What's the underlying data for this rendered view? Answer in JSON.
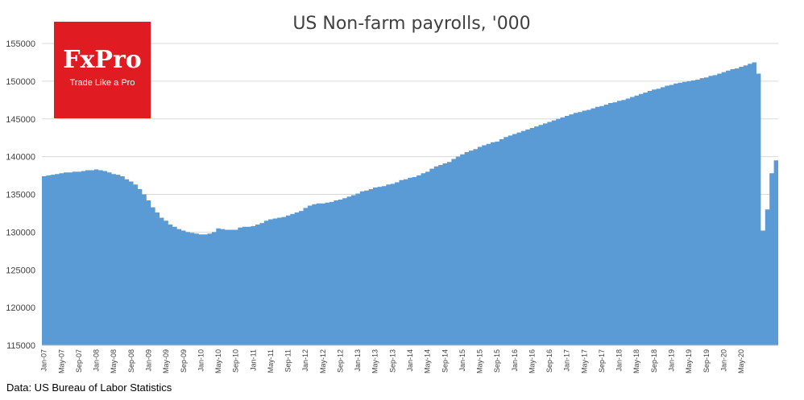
{
  "logo": {
    "name": "FxPro",
    "tagline": "Trade Like a Pro",
    "color": "#e01b22"
  },
  "source": "Data: US Bureau of Labor Statistics",
  "chart_data": {
    "type": "area",
    "title": "US Non-farm payrolls, '000",
    "xlabel": "",
    "ylabel": "",
    "ylim": [
      115000,
      155000
    ],
    "yticks": [
      "115000",
      "120000",
      "125000",
      "130000",
      "135000",
      "140000",
      "145000",
      "150000",
      "155000"
    ],
    "grid": true,
    "color": "#5b9bd5",
    "xticks": [
      "Jan-07",
      "May-07",
      "Sep-07",
      "Jan-08",
      "May-08",
      "Sep-08",
      "Jan-09",
      "May-09",
      "Sep-09",
      "Jan-10",
      "May-10",
      "Sep-10",
      "Jan-11",
      "May-11",
      "Sep-11",
      "Jan-12",
      "May-12",
      "Sep-12",
      "Jan-13",
      "May-13",
      "Sep-13",
      "Jan-14",
      "May-14",
      "Sep-14",
      "Jan-15",
      "May-15",
      "Sep-15",
      "Jan-16",
      "May-16",
      "Sep-16",
      "Jan-17",
      "May-17",
      "Sep-17",
      "Jan-18",
      "May-18",
      "Sep-18",
      "Jan-19",
      "May-19",
      "Sep-19",
      "Jan-20",
      "May-20"
    ],
    "start": "Jan-07",
    "values": [
      137400,
      137500,
      137600,
      137700,
      137800,
      137900,
      137900,
      138000,
      138000,
      138100,
      138200,
      138200,
      138300,
      138200,
      138100,
      137900,
      137700,
      137600,
      137400,
      137000,
      136700,
      136300,
      135700,
      135000,
      134200,
      133300,
      132600,
      131900,
      131500,
      131000,
      130700,
      130400,
      130200,
      130000,
      129900,
      129800,
      129700,
      129700,
      129800,
      130000,
      130500,
      130400,
      130300,
      130300,
      130300,
      130600,
      130700,
      130700,
      130800,
      131000,
      131200,
      131500,
      131700,
      131800,
      131900,
      132000,
      132200,
      132400,
      132600,
      132800,
      133200,
      133500,
      133700,
      133800,
      133800,
      133900,
      134000,
      134200,
      134300,
      134500,
      134700,
      134900,
      135100,
      135400,
      135500,
      135700,
      135900,
      136000,
      136100,
      136300,
      136400,
      136600,
      136900,
      137000,
      137200,
      137300,
      137500,
      137800,
      138000,
      138400,
      138700,
      138900,
      139100,
      139300,
      139700,
      140000,
      140300,
      140600,
      140800,
      141000,
      141300,
      141500,
      141700,
      141900,
      142000,
      142300,
      142600,
      142800,
      143000,
      143200,
      143400,
      143600,
      143800,
      144000,
      144200,
      144400,
      144600,
      144800,
      145000,
      145200,
      145400,
      145600,
      145800,
      145900,
      146100,
      146200,
      146400,
      146600,
      146700,
      146900,
      147100,
      147200,
      147400,
      147500,
      147700,
      147900,
      148100,
      148300,
      148500,
      148700,
      148900,
      149000,
      149200,
      149400,
      149500,
      149700,
      149800,
      149900,
      150000,
      150100,
      150200,
      150400,
      150500,
      150700,
      150800,
      151000,
      151200,
      151400,
      151600,
      151700,
      151900,
      152100,
      152300,
      152500,
      151000,
      130200,
      133000,
      137800,
      139500
    ]
  }
}
